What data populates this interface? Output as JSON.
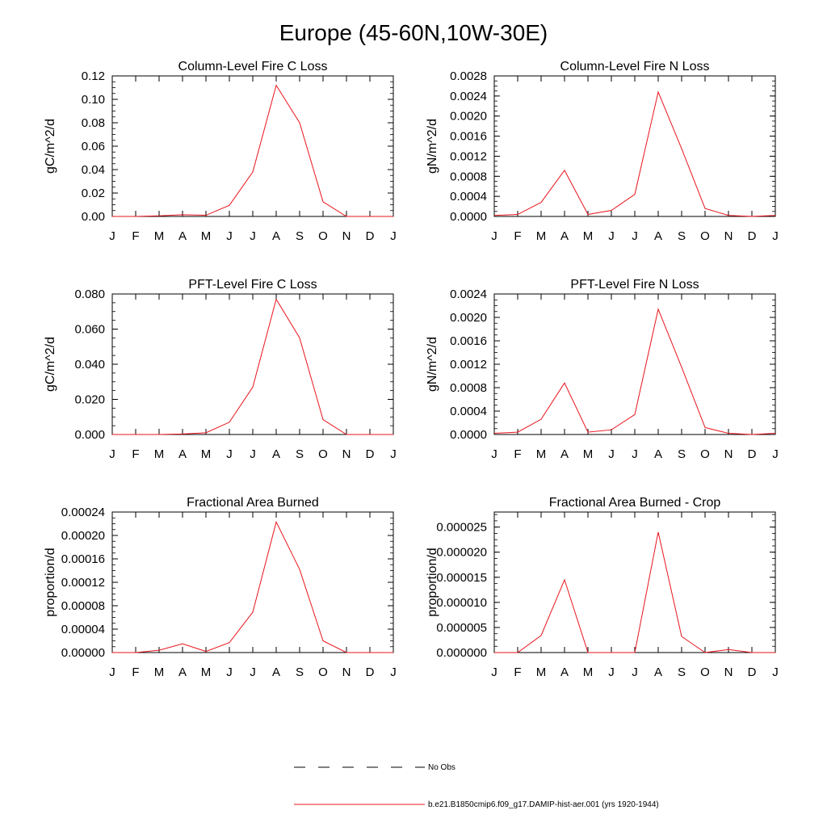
{
  "page": {
    "title": "Europe (45-60N,10W-30E)"
  },
  "legend": {
    "obs_label": "No Obs",
    "model_label": "b.e21.B1850cmip6.f09_g17.DAMIP-hist-aer.001 (yrs 1920-1944)",
    "model_color": "#e8141c",
    "obs_color": "#000000"
  },
  "chart_data": [
    {
      "type": "line",
      "title": "Column-Level Fire C Loss",
      "ylabel": "gC/m^2/d",
      "categories": [
        "J",
        "F",
        "M",
        "A",
        "M",
        "J",
        "J",
        "A",
        "S",
        "O",
        "N",
        "D",
        "J"
      ],
      "ylim": [
        0,
        0.12
      ],
      "yticks": [
        "0.00",
        "0.02",
        "0.04",
        "0.06",
        "0.08",
        "0.10",
        "0.12"
      ],
      "series": [
        {
          "values": [
            0.0,
            0.0,
            0.0005,
            0.0015,
            0.001,
            0.0095,
            0.038,
            0.112,
            0.08,
            0.0125,
            0.0,
            0.0,
            0.0
          ]
        }
      ]
    },
    {
      "type": "line",
      "title": "Column-Level Fire N Loss",
      "ylabel": "gN/m^2/d",
      "categories": [
        "J",
        "F",
        "M",
        "A",
        "M",
        "J",
        "J",
        "A",
        "S",
        "O",
        "N",
        "D",
        "J"
      ],
      "ylim": [
        0,
        0.0028
      ],
      "yticks": [
        "0.0000",
        "0.0004",
        "0.0008",
        "0.0012",
        "0.0016",
        "0.0020",
        "0.0024",
        "0.0028"
      ],
      "series": [
        {
          "values": [
            2e-05,
            4e-05,
            0.00028,
            0.00092,
            4e-05,
            0.00012,
            0.00044,
            0.00248,
            0.00135,
            0.00016,
            2e-05,
            0.0,
            2e-05
          ]
        }
      ]
    },
    {
      "type": "line",
      "title": "PFT-Level Fire C Loss",
      "ylabel": "gC/m^2/d",
      "categories": [
        "J",
        "F",
        "M",
        "A",
        "M",
        "J",
        "J",
        "A",
        "S",
        "O",
        "N",
        "D",
        "J"
      ],
      "ylim": [
        0,
        0.08
      ],
      "yticks": [
        "0.000",
        "0.020",
        "0.040",
        "0.060",
        "0.080"
      ],
      "series": [
        {
          "values": [
            0.0,
            0.0,
            0.0,
            0.0003,
            0.001,
            0.007,
            0.027,
            0.077,
            0.055,
            0.0085,
            0.0,
            0.0,
            0.0
          ]
        }
      ]
    },
    {
      "type": "line",
      "title": "PFT-Level Fire N Loss",
      "ylabel": "gN/m^2/d",
      "categories": [
        "J",
        "F",
        "M",
        "A",
        "M",
        "J",
        "J",
        "A",
        "S",
        "O",
        "N",
        "D",
        "J"
      ],
      "ylim": [
        0,
        0.0024
      ],
      "yticks": [
        "0.0000",
        "0.0004",
        "0.0008",
        "0.0012",
        "0.0016",
        "0.0020",
        "0.0024"
      ],
      "series": [
        {
          "values": [
            2e-05,
            4e-05,
            0.00026,
            0.00088,
            4e-05,
            8e-05,
            0.00034,
            0.00214,
            0.00115,
            0.00012,
            2e-05,
            0.0,
            2e-05
          ]
        }
      ]
    },
    {
      "type": "line",
      "title": "Fractional Area Burned",
      "ylabel": "proportion/d",
      "categories": [
        "J",
        "F",
        "M",
        "A",
        "M",
        "J",
        "J",
        "A",
        "S",
        "O",
        "N",
        "D",
        "J"
      ],
      "ylim": [
        0,
        0.00024
      ],
      "yticks": [
        "0.00000",
        "0.00004",
        "0.00008",
        "0.00012",
        "0.00016",
        "0.00020",
        "0.00024"
      ],
      "series": [
        {
          "values": [
            0.0,
            0.0,
            4e-06,
            1.5e-05,
            2e-06,
            1.7e-05,
            6.9e-05,
            0.000223,
            0.000142,
            2e-05,
            0.0,
            0.0,
            0.0
          ]
        }
      ]
    },
    {
      "type": "line",
      "title": "Fractional Area Burned - Crop",
      "ylabel": "proportion/d",
      "categories": [
        "J",
        "F",
        "M",
        "A",
        "M",
        "J",
        "J",
        "A",
        "S",
        "O",
        "N",
        "D",
        "J"
      ],
      "ylim": [
        0,
        2.8e-05
      ],
      "yticks": [
        "0.000000",
        "0.000005",
        "0.000010",
        "0.000015",
        "0.000020",
        "0.000025"
      ],
      "series": [
        {
          "values": [
            0.0,
            0.0,
            3.4e-06,
            1.45e-05,
            0.0,
            0.0,
            0.0,
            2.4e-05,
            3.2e-06,
            0.0,
            6e-07,
            0.0,
            0.0
          ]
        }
      ]
    }
  ]
}
